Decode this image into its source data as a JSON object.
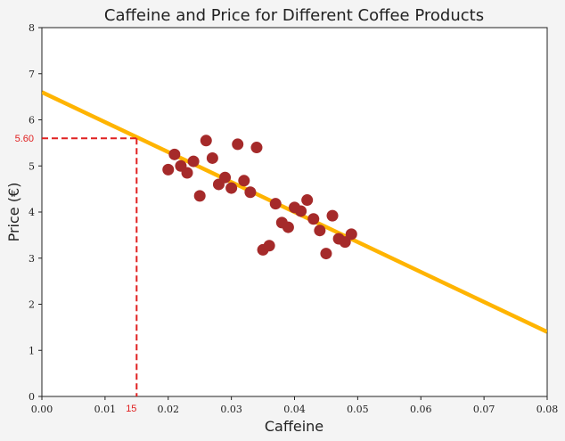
{
  "chart_data": {
    "type": "scatter",
    "title": "Caffeine and Price for Different Coffee Products",
    "xlabel": "Caffeine",
    "ylabel": "Price (€)",
    "xlim": [
      0.0,
      0.08
    ],
    "ylim": [
      0,
      8
    ],
    "x_ticks": [
      "0.00",
      "0.01",
      "0.02",
      "0.03",
      "0.04",
      "0.05",
      "0.06",
      "0.07",
      "0.08"
    ],
    "y_ticks": [
      "0",
      "1",
      "2",
      "3",
      "4",
      "5",
      "6",
      "7",
      "8"
    ],
    "grid": false,
    "points": [
      {
        "x": 0.02,
        "y": 4.92
      },
      {
        "x": 0.021,
        "y": 5.25
      },
      {
        "x": 0.022,
        "y": 5.0
      },
      {
        "x": 0.023,
        "y": 4.85
      },
      {
        "x": 0.024,
        "y": 5.1
      },
      {
        "x": 0.025,
        "y": 4.35
      },
      {
        "x": 0.026,
        "y": 5.55
      },
      {
        "x": 0.027,
        "y": 5.17
      },
      {
        "x": 0.028,
        "y": 4.6
      },
      {
        "x": 0.029,
        "y": 4.75
      },
      {
        "x": 0.03,
        "y": 4.52
      },
      {
        "x": 0.031,
        "y": 5.47
      },
      {
        "x": 0.032,
        "y": 4.68
      },
      {
        "x": 0.033,
        "y": 4.43
      },
      {
        "x": 0.034,
        "y": 5.4
      },
      {
        "x": 0.035,
        "y": 3.18
      },
      {
        "x": 0.036,
        "y": 3.27
      },
      {
        "x": 0.037,
        "y": 4.18
      },
      {
        "x": 0.038,
        "y": 3.77
      },
      {
        "x": 0.039,
        "y": 3.67
      },
      {
        "x": 0.04,
        "y": 4.1
      },
      {
        "x": 0.041,
        "y": 4.02
      },
      {
        "x": 0.042,
        "y": 4.26
      },
      {
        "x": 0.043,
        "y": 3.85
      },
      {
        "x": 0.044,
        "y": 3.6
      },
      {
        "x": 0.045,
        "y": 3.1
      },
      {
        "x": 0.046,
        "y": 3.92
      },
      {
        "x": 0.047,
        "y": 3.42
      },
      {
        "x": 0.048,
        "y": 3.35
      },
      {
        "x": 0.049,
        "y": 3.52
      }
    ],
    "point_color": "#a52a2a",
    "fit_line": {
      "x": [
        0.0,
        0.08
      ],
      "y": [
        6.6,
        1.4
      ],
      "color": "#ffb400"
    },
    "reference": {
      "x": 0.015,
      "y": 5.6,
      "x_label": "15",
      "y_label": "5.60",
      "color": "#e02020"
    }
  }
}
